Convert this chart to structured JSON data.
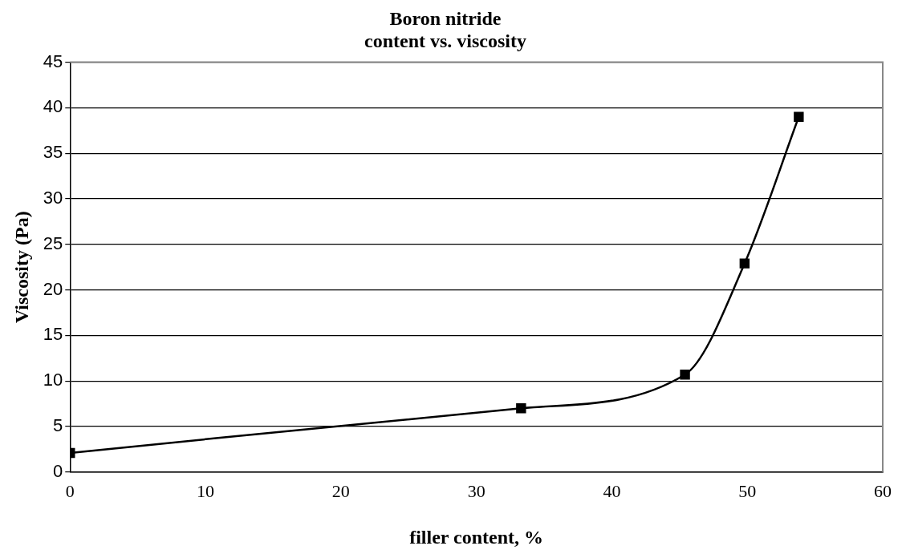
{
  "chart_data": {
    "type": "line",
    "title": [
      "Boron nitride",
      "content vs. viscosity"
    ],
    "xlabel": "filler content, %",
    "ylabel": "Viscosity (Pa)",
    "x": [
      0,
      33.3,
      45.4,
      49.8,
      53.8
    ],
    "series": [
      {
        "color": "#000000",
        "values": [
          2.1,
          7.0,
          10.7,
          22.9,
          39.0
        ]
      }
    ],
    "xlim": [
      0,
      60
    ],
    "xticks": [
      0,
      10,
      20,
      30,
      40,
      50,
      60
    ],
    "ylim": [
      0,
      45
    ],
    "yticks": [
      0,
      5,
      10,
      15,
      20,
      25,
      30,
      35,
      40,
      45
    ],
    "grid": "y",
    "legend": false,
    "marker": "square",
    "line_style": "solid"
  }
}
